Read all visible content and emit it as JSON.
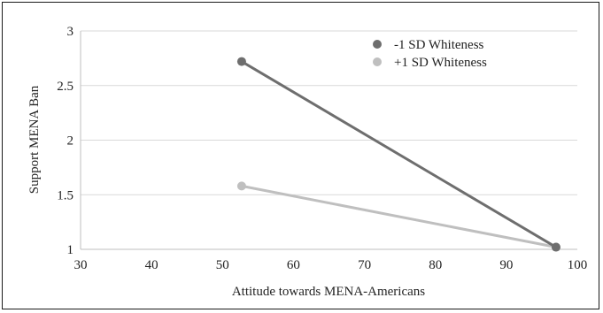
{
  "chart_data": {
    "type": "line",
    "xlabel": "Attitude towards MENA-Americans",
    "ylabel": "Support MENA Ban",
    "xlim": [
      30,
      100
    ],
    "ylim": [
      1,
      3
    ],
    "x_ticks": [
      "30",
      "40",
      "50",
      "60",
      "70",
      "80",
      "90",
      "100"
    ],
    "y_ticks": [
      "1",
      "1.5",
      "2",
      "2.5",
      "3"
    ],
    "grid": "horizontal",
    "legend_position": "top-right",
    "series": [
      {
        "name": "-1 SD Whiteness",
        "color": "#6e6e6e",
        "points": [
          {
            "x": 52.7,
            "y": 2.72
          },
          {
            "x": 97.0,
            "y": 1.02
          }
        ]
      },
      {
        "name": "+1 SD Whiteness",
        "color": "#bfbfbf",
        "points": [
          {
            "x": 52.7,
            "y": 1.58
          },
          {
            "x": 97.0,
            "y": 1.02
          }
        ]
      }
    ]
  }
}
